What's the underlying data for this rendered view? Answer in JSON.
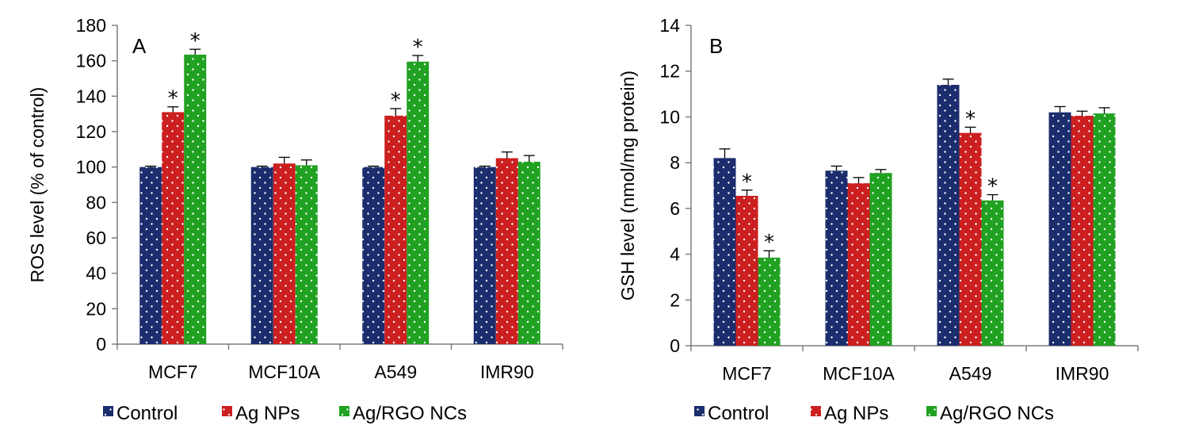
{
  "colors": {
    "Control": "#1c2d6e",
    "Ag NPs": "#cc1f1f",
    "Ag/RGO NCs": "#21a121",
    "axis": "#7f7f7f",
    "text": "#000000"
  },
  "chart_data": [
    {
      "type": "bar",
      "panel_label": "A",
      "ylabel": "ROS level (% of control)",
      "xlabel": "",
      "ylim": [
        0,
        180
      ],
      "yticks": [
        "0",
        "20",
        "40",
        "60",
        "80",
        "100",
        "120",
        "140",
        "160",
        "180"
      ],
      "categories": [
        "MCF7",
        "MCF10A",
        "A549",
        "IMR90"
      ],
      "series": [
        {
          "name": "Control",
          "values": [
            100,
            100,
            100,
            100
          ],
          "errors": [
            0.5,
            0.5,
            0.5,
            0.5
          ],
          "significant": [
            false,
            false,
            false,
            false
          ]
        },
        {
          "name": "Ag NPs",
          "values": [
            131,
            102,
            129,
            105
          ],
          "errors": [
            3,
            3.5,
            4,
            3.5
          ],
          "significant": [
            true,
            false,
            true,
            false
          ]
        },
        {
          "name": "Ag/RGO NCs",
          "values": [
            163.5,
            101,
            159.5,
            103
          ],
          "errors": [
            3,
            3,
            3.5,
            3.5
          ],
          "significant": [
            true,
            false,
            true,
            false
          ]
        }
      ],
      "significance_marker": "*",
      "legend": "bottom"
    },
    {
      "type": "bar",
      "panel_label": "B",
      "ylabel": "GSH level (nmol/mg protein)",
      "xlabel": "",
      "ylim": [
        0,
        14
      ],
      "yticks": [
        "0",
        "2",
        "4",
        "6",
        "8",
        "10",
        "12",
        "14"
      ],
      "categories": [
        "MCF7",
        "MCF10A",
        "A549",
        "IMR90"
      ],
      "series": [
        {
          "name": "Control",
          "values": [
            8.2,
            7.65,
            11.4,
            10.2
          ],
          "errors": [
            0.4,
            0.2,
            0.25,
            0.25
          ],
          "significant": [
            false,
            false,
            false,
            false
          ]
        },
        {
          "name": "Ag NPs",
          "values": [
            6.55,
            7.1,
            9.3,
            10.05
          ],
          "errors": [
            0.25,
            0.25,
            0.25,
            0.2
          ],
          "significant": [
            true,
            false,
            true,
            false
          ]
        },
        {
          "name": "Ag/RGO NCs",
          "values": [
            3.85,
            7.55,
            6.35,
            10.15
          ],
          "errors": [
            0.3,
            0.15,
            0.25,
            0.25
          ],
          "significant": [
            true,
            false,
            true,
            false
          ]
        }
      ],
      "significance_marker": "*",
      "legend": "bottom"
    }
  ]
}
